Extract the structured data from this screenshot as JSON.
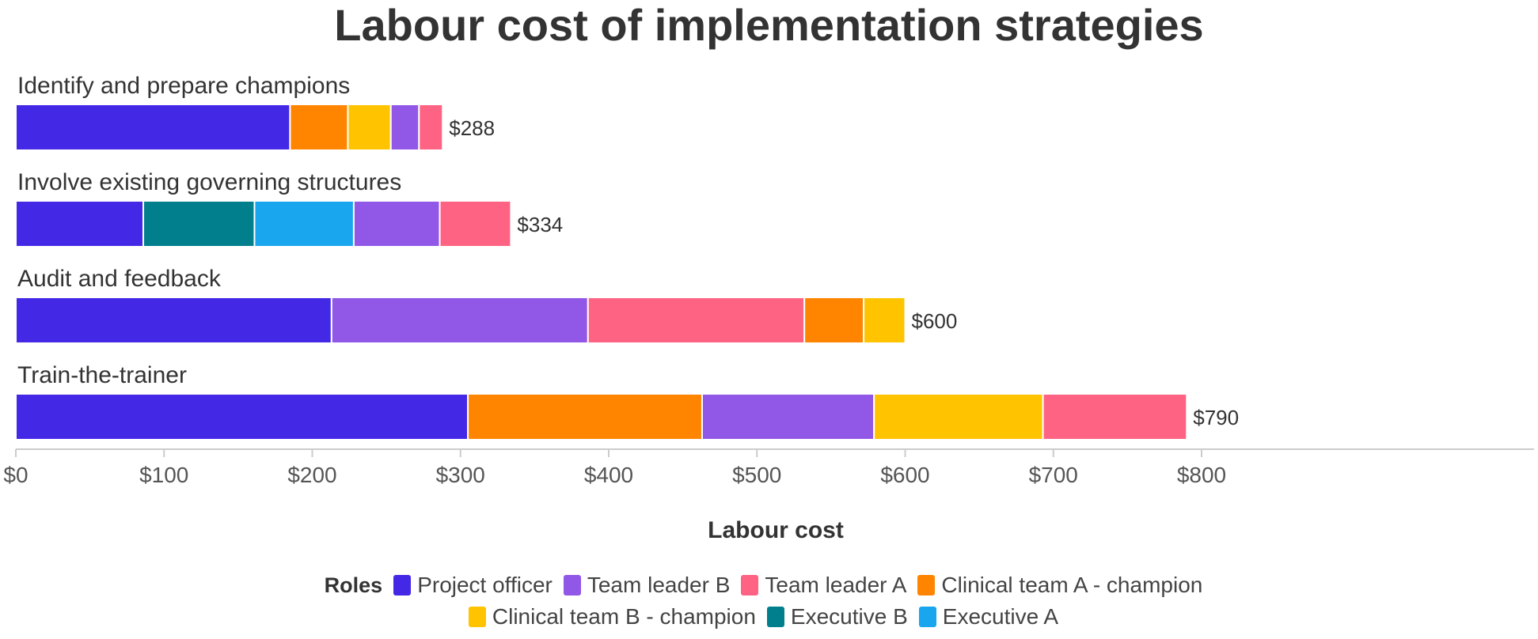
{
  "chart_data": {
    "type": "bar",
    "orientation": "horizontal",
    "stacked": true,
    "title": "Labour cost of implementation strategies",
    "xlabel": "Labour cost",
    "xlim": [
      0,
      800
    ],
    "xticks": [
      "$0",
      "$100",
      "$200",
      "$300",
      "$400",
      "$500",
      "$600",
      "$700",
      "$800"
    ],
    "xtick_values": [
      0,
      100,
      200,
      300,
      400,
      500,
      600,
      700,
      800
    ],
    "grid": false,
    "legend_title": "Roles",
    "legend_position": "bottom",
    "roles": [
      {
        "name": "Project officer",
        "color": "#4329E6"
      },
      {
        "name": "Team leader B",
        "color": "#9157E6"
      },
      {
        "name": "Team leader A",
        "color": "#FF6384"
      },
      {
        "name": "Clinical team A - champion",
        "color": "#FF8500"
      },
      {
        "name": "Clinical team B - champion",
        "color": "#FFC300"
      },
      {
        "name": "Executive B",
        "color": "#017F8D"
      },
      {
        "name": "Executive A",
        "color": "#1AA6EE"
      }
    ],
    "bars": [
      {
        "category": "Identify and prepare champions",
        "total_label": "$288",
        "segments": [
          {
            "role": "Project officer",
            "value": 185
          },
          {
            "role": "Clinical team A - champion",
            "value": 39
          },
          {
            "role": "Clinical team B - champion",
            "value": 29
          },
          {
            "role": "Team leader B",
            "value": 19
          },
          {
            "role": "Team leader A",
            "value": 16
          }
        ]
      },
      {
        "category": "Involve existing governing structures",
        "total_label": "$334",
        "segments": [
          {
            "role": "Project officer",
            "value": 86
          },
          {
            "role": "Executive B",
            "value": 75
          },
          {
            "role": "Executive A",
            "value": 67
          },
          {
            "role": "Team leader B",
            "value": 58
          },
          {
            "role": "Team leader A",
            "value": 48
          }
        ]
      },
      {
        "category": "Audit and feedback",
        "total_label": "$600",
        "segments": [
          {
            "role": "Project officer",
            "value": 213
          },
          {
            "role": "Team leader B",
            "value": 173
          },
          {
            "role": "Team leader A",
            "value": 146
          },
          {
            "role": "Clinical team A - champion",
            "value": 40
          },
          {
            "role": "Clinical team B - champion",
            "value": 28
          }
        ]
      },
      {
        "category": "Train-the-trainer",
        "total_label": "$790",
        "segments": [
          {
            "role": "Project officer",
            "value": 305
          },
          {
            "role": "Clinical team A - champion",
            "value": 158
          },
          {
            "role": "Team leader B",
            "value": 116
          },
          {
            "role": "Clinical team B - champion",
            "value": 114
          },
          {
            "role": "Team leader A",
            "value": 97
          }
        ]
      }
    ]
  }
}
